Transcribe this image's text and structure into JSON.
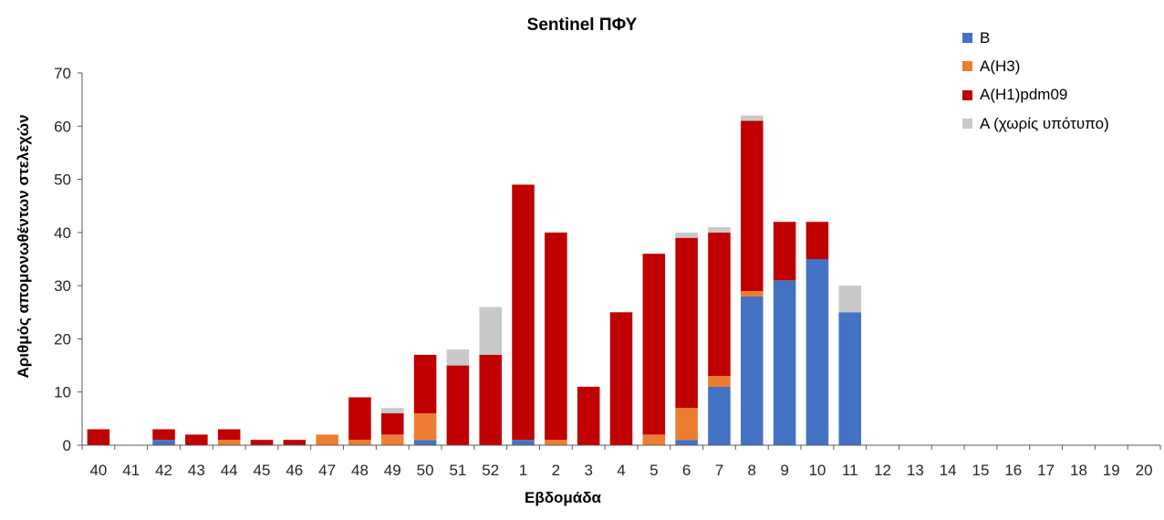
{
  "chart_data": {
    "type": "bar",
    "stacked": true,
    "title": "Sentinel ΠΦΥ",
    "xlabel": "Εβδομάδα",
    "ylabel": "Αριθμός απομονωθέντων στελεχών",
    "ylim": [
      0,
      70
    ],
    "yticks": [
      0,
      10,
      20,
      30,
      40,
      50,
      60,
      70
    ],
    "grid": false,
    "legend_position": "top-right",
    "categories": [
      "40",
      "41",
      "42",
      "43",
      "44",
      "45",
      "46",
      "47",
      "48",
      "49",
      "50",
      "51",
      "52",
      "1",
      "2",
      "3",
      "4",
      "5",
      "6",
      "7",
      "8",
      "9",
      "10",
      "11",
      "12",
      "13",
      "14",
      "15",
      "16",
      "17",
      "18",
      "19",
      "20"
    ],
    "series": [
      {
        "name": "B",
        "color": "#4472C4",
        "values": [
          0,
          0,
          1,
          0,
          0,
          0,
          0,
          0,
          0,
          0,
          1,
          0,
          0,
          1,
          0,
          0,
          0,
          0,
          1,
          11,
          28,
          31,
          35,
          25,
          0,
          0,
          0,
          0,
          0,
          0,
          0,
          0,
          0
        ]
      },
      {
        "name": "A(H3)",
        "color": "#ED7D31",
        "values": [
          0,
          0,
          0,
          0,
          1,
          0,
          0,
          2,
          1,
          2,
          5,
          0,
          0,
          0,
          1,
          0,
          0,
          2,
          6,
          2,
          1,
          0,
          0,
          0,
          0,
          0,
          0,
          0,
          0,
          0,
          0,
          0,
          0
        ]
      },
      {
        "name": "A(H1)pdm09",
        "color": "#C00000",
        "values": [
          3,
          0,
          2,
          2,
          2,
          1,
          1,
          0,
          8,
          4,
          11,
          15,
          17,
          48,
          39,
          11,
          25,
          34,
          32,
          27,
          32,
          11,
          7,
          0,
          0,
          0,
          0,
          0,
          0,
          0,
          0,
          0,
          0
        ]
      },
      {
        "name": "A (χωρίς υπότυπο)",
        "color": "#C9C9C9",
        "values": [
          0,
          0,
          0,
          0,
          0,
          0,
          0,
          0,
          0,
          1,
          0,
          3,
          9,
          0,
          0,
          0,
          0,
          0,
          1,
          1,
          1,
          0,
          0,
          5,
          0,
          0,
          0,
          0,
          0,
          0,
          0,
          0,
          0
        ]
      }
    ]
  }
}
